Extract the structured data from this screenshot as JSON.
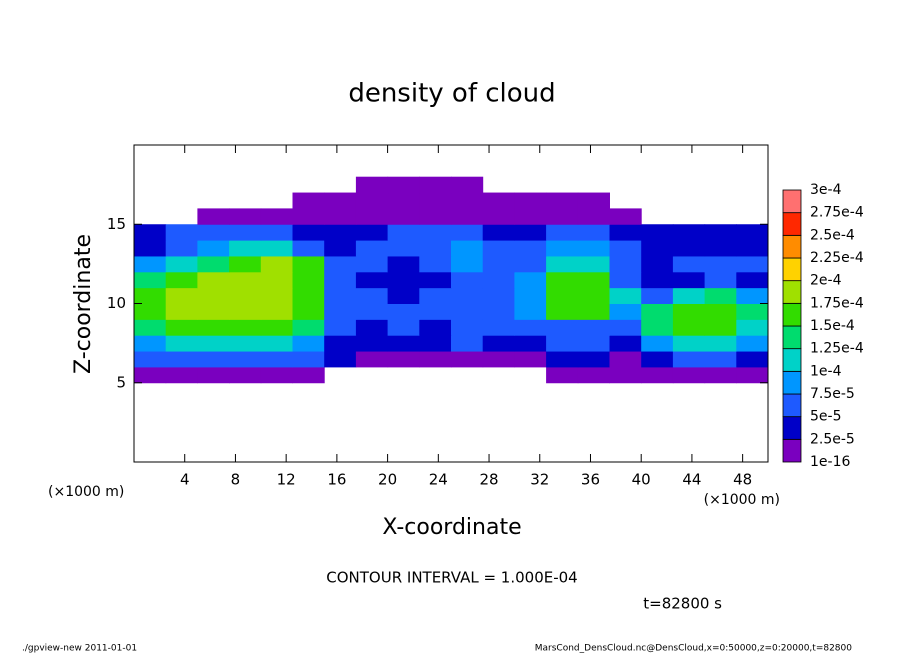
{
  "chart_data": {
    "type": "heatmap",
    "title": "density of cloud",
    "xlabel": "X-coordinate",
    "ylabel": "Z-coordinate",
    "x_unit": "(×1000 m)",
    "xlim": [
      0,
      50
    ],
    "ylim": [
      0,
      20
    ],
    "xticks": [
      4,
      8,
      12,
      16,
      20,
      24,
      28,
      32,
      36,
      40,
      44,
      48
    ],
    "yticks": [
      5,
      10,
      15
    ],
    "x_bins": [
      0,
      2.5,
      5,
      7.5,
      10,
      12.5,
      15,
      17.5,
      20,
      22.5,
      25,
      27.5,
      30,
      32.5,
      35,
      37.5,
      40,
      42.5,
      45,
      47.5,
      50
    ],
    "z_bins": [
      5,
      6,
      7,
      8,
      9,
      10,
      11,
      12,
      13,
      14,
      15,
      16,
      17,
      18
    ],
    "values": [
      [
        1e-05,
        1e-05,
        1e-05,
        1e-05,
        1e-05,
        1e-05,
        null,
        null,
        null,
        null,
        null,
        null,
        null,
        1e-05,
        1e-05,
        1e-05,
        1e-05,
        1e-05,
        1e-05,
        1e-05
      ],
      [
        5e-05,
        5e-05,
        5e-05,
        5e-05,
        5e-05,
        5e-05,
        3e-05,
        2e-05,
        2e-05,
        2e-05,
        2e-05,
        2e-05,
        2e-05,
        3e-05,
        3e-05,
        2e-05,
        3e-05,
        5e-05,
        5e-05,
        4e-05
      ],
      [
        9e-05,
        0.0001,
        0.00011,
        0.00011,
        0.0001,
        9e-05,
        4e-05,
        4e-05,
        3e-05,
        4e-05,
        5e-05,
        4e-05,
        4e-05,
        5e-05,
        5e-05,
        4e-05,
        9e-05,
        0.00012,
        0.00011,
        8e-05
      ],
      [
        0.00014,
        0.00016,
        0.00017,
        0.00017,
        0.00016,
        0.00014,
        5e-05,
        4e-05,
        5e-05,
        4e-05,
        6e-05,
        5e-05,
        6e-05,
        7e-05,
        6e-05,
        5e-05,
        0.00013,
        0.00016,
        0.00016,
        0.00012
      ],
      [
        0.00017,
        0.00019,
        0.00019,
        0.00019,
        0.00018,
        0.00016,
        6e-05,
        5e-05,
        5e-05,
        6e-05,
        5e-05,
        6e-05,
        8e-05,
        0.00015,
        0.00016,
        9e-05,
        0.00014,
        0.00017,
        0.00017,
        0.00013
      ],
      [
        0.00016,
        0.00019,
        0.00019,
        0.00019,
        0.00019,
        0.00017,
        6e-05,
        5e-05,
        4e-05,
        5e-05,
        5e-05,
        6e-05,
        9e-05,
        0.00016,
        0.00017,
        0.0001,
        6e-05,
        0.00012,
        0.00014,
        8e-05
      ],
      [
        0.00013,
        0.00017,
        0.00018,
        0.00019,
        0.00019,
        0.00017,
        5e-05,
        4e-05,
        4e-05,
        4e-05,
        5e-05,
        6e-05,
        8e-05,
        0.00015,
        0.00016,
        7e-05,
        4e-05,
        4e-05,
        5e-05,
        4e-05
      ],
      [
        8e-05,
        0.00012,
        0.00013,
        0.00017,
        0.00018,
        0.00015,
        6e-05,
        5e-05,
        4e-05,
        6e-05,
        8e-05,
        5e-05,
        6e-05,
        0.00011,
        0.00012,
        5e-05,
        4e-05,
        5e-05,
        6e-05,
        5e-05
      ],
      [
        3e-05,
        6e-05,
        9e-05,
        0.00011,
        0.0001,
        6e-05,
        4e-05,
        5e-05,
        5e-05,
        7e-05,
        8e-05,
        6e-05,
        6e-05,
        9e-05,
        9e-05,
        5e-05,
        3e-05,
        4e-05,
        4e-05,
        3e-05
      ],
      [
        4e-05,
        6e-05,
        7e-05,
        6e-05,
        5e-05,
        4e-05,
        3e-05,
        4e-05,
        6e-05,
        6e-05,
        5e-05,
        4e-05,
        4e-05,
        6e-05,
        6e-05,
        4e-05,
        3e-05,
        3e-05,
        4e-05,
        3e-05
      ],
      [
        null,
        null,
        1e-05,
        1e-05,
        1e-05,
        1e-05,
        1e-05,
        1e-05,
        1e-05,
        1e-05,
        1e-05,
        1e-05,
        1e-05,
        1e-05,
        1e-05,
        1e-05,
        null,
        null,
        null,
        null
      ],
      [
        null,
        null,
        null,
        null,
        null,
        1e-05,
        1e-05,
        1e-05,
        1e-05,
        1e-05,
        1e-05,
        1e-05,
        1e-05,
        1e-05,
        1e-05,
        null,
        null,
        null,
        null,
        null
      ],
      [
        null,
        null,
        null,
        null,
        null,
        null,
        null,
        1e-05,
        1e-05,
        1e-05,
        1e-05,
        null,
        null,
        null,
        null,
        null,
        null,
        null,
        null,
        null
      ]
    ],
    "colorbar_ticks": [
      {
        "value": 1e-16,
        "label": "1e-16"
      },
      {
        "value": 2.5e-05,
        "label": "2.5e-5"
      },
      {
        "value": 5e-05,
        "label": "5e-5"
      },
      {
        "value": 7.5e-05,
        "label": "7.5e-5"
      },
      {
        "value": 0.0001,
        "label": "1e-4"
      },
      {
        "value": 0.000125,
        "label": "1.25e-4"
      },
      {
        "value": 0.00015,
        "label": "1.5e-4"
      },
      {
        "value": 0.000175,
        "label": "1.75e-4"
      },
      {
        "value": 0.0002,
        "label": "2e-4"
      },
      {
        "value": 0.000225,
        "label": "2.25e-4"
      },
      {
        "value": 0.00025,
        "label": "2.5e-4"
      },
      {
        "value": 0.000275,
        "label": "2.75e-4"
      },
      {
        "value": 0.0003,
        "label": "3e-4"
      }
    ],
    "colors": [
      "#7a00bf",
      "#0000c8",
      "#1e5aff",
      "#0096ff",
      "#00d2c8",
      "#00dc6e",
      "#32dc00",
      "#a0e000",
      "#ffd200",
      "#ff8c00",
      "#ff2800",
      "#ff7070"
    ],
    "annotations": [
      "CONTOUR INTERVAL = 1.000E-04",
      "t=82800 s"
    ],
    "footer_left": "./gpview-new  2011-01-01",
    "footer_right": "MarsCond_DensCloud.nc@DensCloud,x=0:50000,z=0:20000,t=82800"
  }
}
